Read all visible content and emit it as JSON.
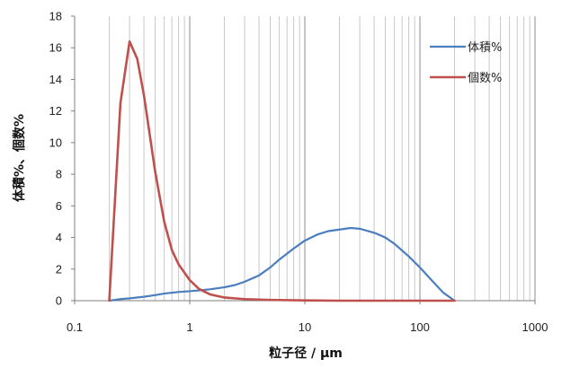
{
  "chart_data": {
    "type": "line",
    "x_scale": "log",
    "xlim": [
      0.1,
      1000
    ],
    "ylim": [
      0,
      18
    ],
    "xlabel": "粒子径 / μm",
    "ylabel": "体積%、個数%",
    "x_ticks": [
      "0.1",
      "1",
      "10",
      "100",
      "1000"
    ],
    "y_ticks": [
      "0",
      "2",
      "4",
      "6",
      "8",
      "10",
      "12",
      "14",
      "16",
      "18"
    ],
    "grid": "vertical minor and major lines",
    "legend_position": "top-right",
    "series": [
      {
        "name": "体積%",
        "color": "#4a7ebf",
        "points": [
          [
            0.2,
            0.0
          ],
          [
            0.25,
            0.1
          ],
          [
            0.3,
            0.15
          ],
          [
            0.4,
            0.25
          ],
          [
            0.5,
            0.35
          ],
          [
            0.6,
            0.45
          ],
          [
            0.8,
            0.55
          ],
          [
            1.0,
            0.6
          ],
          [
            1.2,
            0.65
          ],
          [
            1.5,
            0.72
          ],
          [
            2.0,
            0.85
          ],
          [
            2.5,
            1.0
          ],
          [
            3.0,
            1.2
          ],
          [
            4.0,
            1.6
          ],
          [
            5.0,
            2.1
          ],
          [
            6.0,
            2.6
          ],
          [
            8.0,
            3.3
          ],
          [
            10,
            3.8
          ],
          [
            13,
            4.2
          ],
          [
            16,
            4.4
          ],
          [
            20,
            4.5
          ],
          [
            25,
            4.6
          ],
          [
            30,
            4.55
          ],
          [
            40,
            4.3
          ],
          [
            50,
            4.0
          ],
          [
            60,
            3.6
          ],
          [
            80,
            2.8
          ],
          [
            100,
            2.1
          ],
          [
            130,
            1.2
          ],
          [
            160,
            0.5
          ],
          [
            200,
            0.0
          ]
        ]
      },
      {
        "name": "個数%",
        "color": "#c0504d",
        "points": [
          [
            0.2,
            0.0
          ],
          [
            0.25,
            12.5
          ],
          [
            0.3,
            16.4
          ],
          [
            0.35,
            15.3
          ],
          [
            0.4,
            13.0
          ],
          [
            0.5,
            8.2
          ],
          [
            0.6,
            5.0
          ],
          [
            0.7,
            3.2
          ],
          [
            0.8,
            2.3
          ],
          [
            1.0,
            1.3
          ],
          [
            1.2,
            0.75
          ],
          [
            1.5,
            0.4
          ],
          [
            2.0,
            0.2
          ],
          [
            3.0,
            0.1
          ],
          [
            5.0,
            0.05
          ],
          [
            10,
            0.02
          ],
          [
            20,
            0.0
          ],
          [
            100,
            0.0
          ],
          [
            200,
            0.0
          ]
        ]
      }
    ]
  }
}
